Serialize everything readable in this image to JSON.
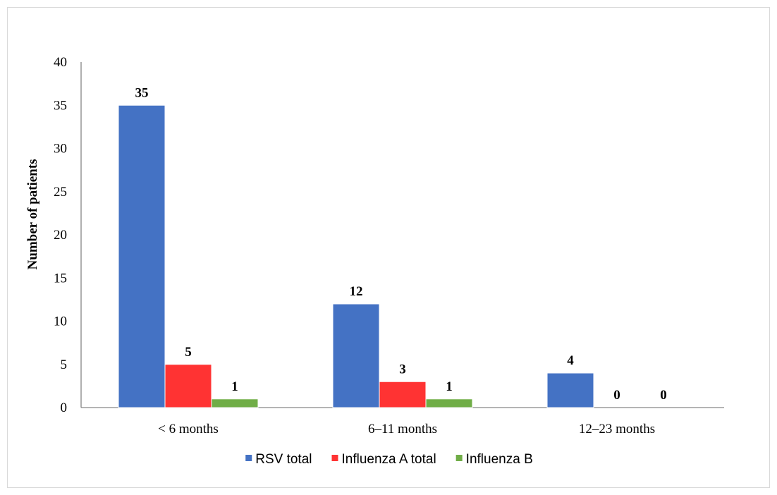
{
  "chart_data": {
    "type": "bar",
    "title": "",
    "xlabel": "",
    "ylabel": "Number of patients",
    "ylim": [
      0,
      40
    ],
    "yticks": [
      0,
      5,
      10,
      15,
      20,
      25,
      30,
      35,
      40
    ],
    "categories": [
      "< 6 months",
      "6–11 months",
      "12–23 months"
    ],
    "series": [
      {
        "name": "RSV total",
        "color": "#4472c4",
        "values": [
          35,
          12,
          4
        ]
      },
      {
        "name": "Influenza A total",
        "color": "#ff3333",
        "values": [
          5,
          3,
          0
        ]
      },
      {
        "name": "Influenza B",
        "color": "#70ad47",
        "values": [
          1,
          1,
          0
        ]
      }
    ],
    "data_labels": true,
    "grid": false,
    "legend_position": "bottom"
  }
}
